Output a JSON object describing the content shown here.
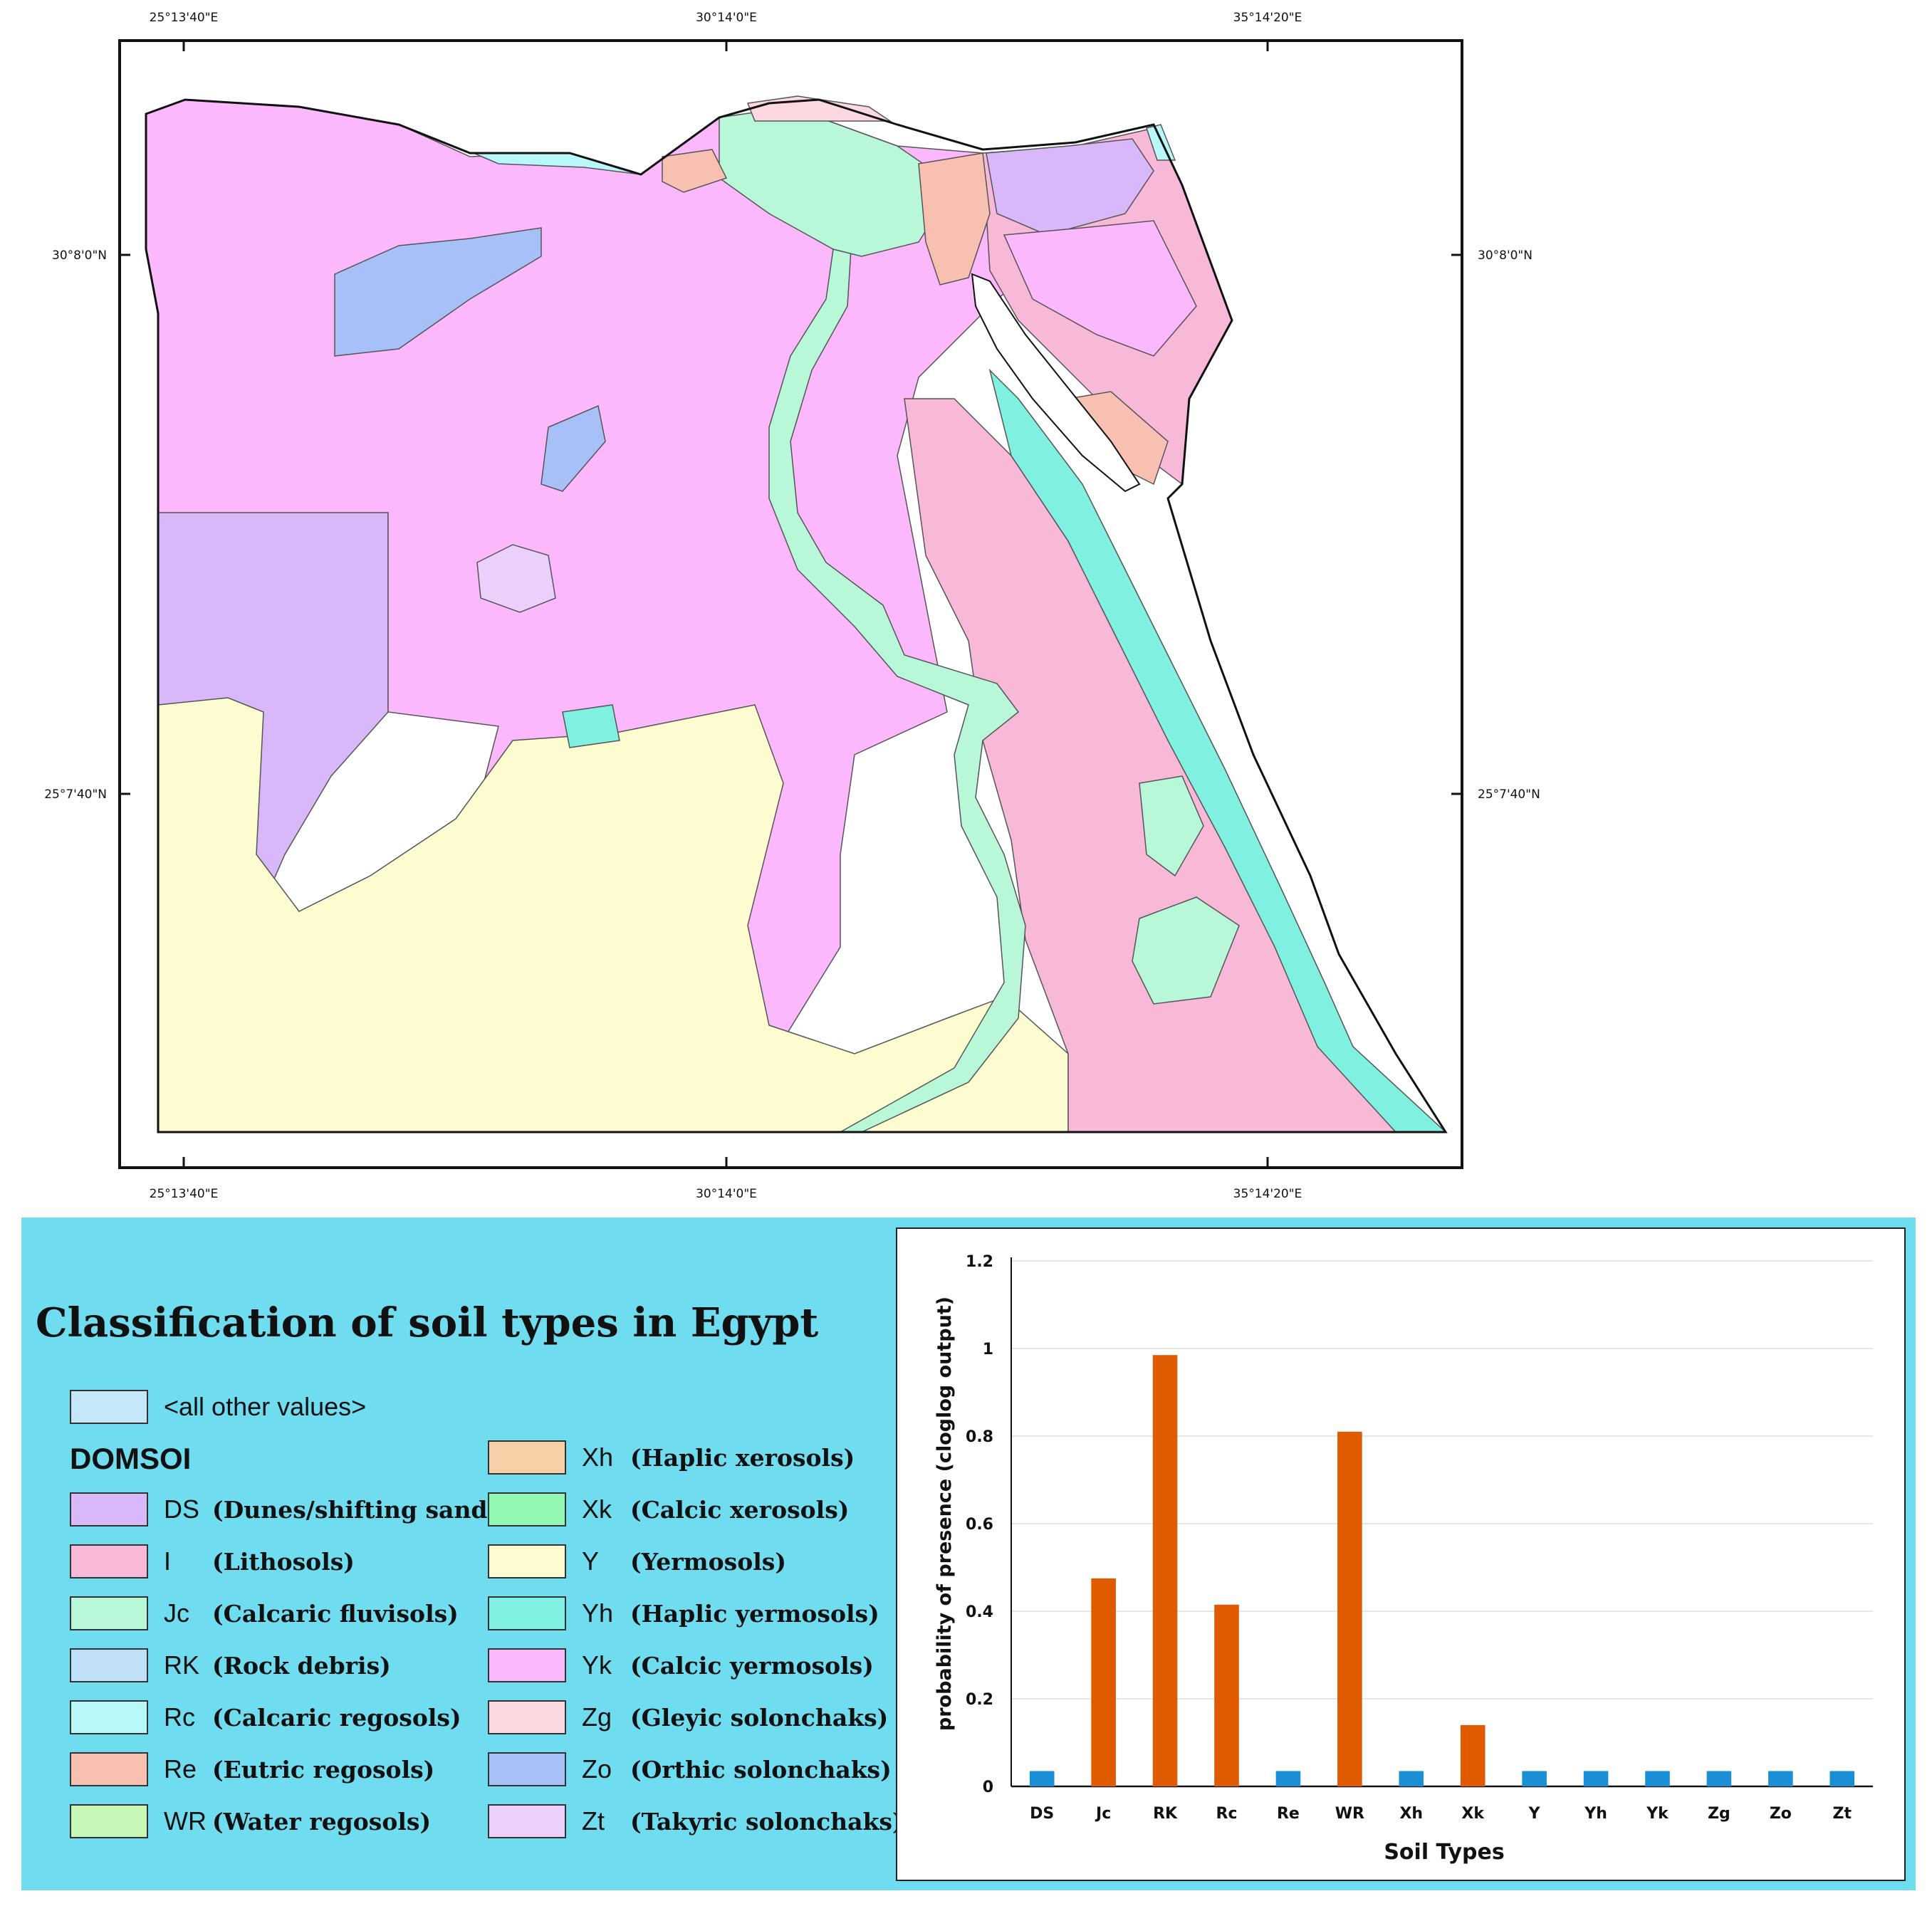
{
  "map": {
    "top_lon_labels": [
      "25°13'40\"E",
      "30°14'0\"E",
      "35°14'20\"E"
    ],
    "bottom_lon_labels": [
      "25°13'40\"E",
      "30°14'0\"E",
      "35°14'20\"E"
    ],
    "left_lat_labels": [
      "30°8'0\"N",
      "25°7'40\"N"
    ],
    "right_lat_labels": [
      "30°8'0\"N",
      "25°7'40\"N"
    ],
    "colors": {
      "DS": "#d8b8f8",
      "I": "#f8b8d8",
      "Jc": "#b8f8d8",
      "RK": "#c0e0f8",
      "Rc": "#b8f8f8",
      "Re": "#f8c0b0",
      "WR": "#c8f8b8",
      "Xh": "#f8d0a8",
      "Xk": "#90f8b0",
      "Y": "#fcfcd0",
      "Yh": "#80f0e0",
      "Yk": "#fcb8fc",
      "Zg": "#fcd8e0",
      "Zo": "#a8c0f8",
      "Zt": "#ecd0fc",
      "other": "#c4e8f8"
    }
  },
  "legend": {
    "title": "Classification of soil types in Egypt",
    "other_label": "<all other values>",
    "heading": "DOMSOI",
    "items": [
      {
        "code": "DS",
        "desc": "(Dunes/shifting sand)",
        "color": "#d8b8f8"
      },
      {
        "code": "I",
        "desc": "(Lithosols)",
        "color": "#f8b8d8"
      },
      {
        "code": "Jc",
        "desc": "(Calcaric fluvisols)",
        "color": "#b8f8d8"
      },
      {
        "code": "RK",
        "desc": "(Rock debris)",
        "color": "#c0e0f8"
      },
      {
        "code": "Rc",
        "desc": "(Calcaric regosols)",
        "color": "#b8f8f8"
      },
      {
        "code": "Re",
        "desc": "(Eutric regosols)",
        "color": "#f8c0b0"
      },
      {
        "code": "WR",
        "desc": "(Water regosols)",
        "color": "#c8f8b8"
      },
      {
        "code": "Xh",
        "desc": "(Haplic xerosols)",
        "color": "#f8d0a8"
      },
      {
        "code": "Xk",
        "desc": "(Calcic xerosols)",
        "color": "#90f8b0"
      },
      {
        "code": "Y",
        "desc": "(Yermosols)",
        "color": "#fcfcd0"
      },
      {
        "code": "Yh",
        "desc": "(Haplic yermosols)",
        "color": "#80f0e0"
      },
      {
        "code": "Yk",
        "desc": "(Calcic yermosols)",
        "color": "#fcb8fc"
      },
      {
        "code": "Zg",
        "desc": "(Gleyic solonchaks)",
        "color": "#fcd8e0"
      },
      {
        "code": "Zo",
        "desc": "(Orthic solonchaks)",
        "color": "#a8c0f8"
      },
      {
        "code": "Zt",
        "desc": "(Takyric solonchaks)",
        "color": "#ecd0fc"
      }
    ]
  },
  "chart_data": {
    "type": "bar",
    "categories": [
      "DS",
      "Jc",
      "RK",
      "Rc",
      "Re",
      "WR",
      "Xh",
      "Xk",
      "Y",
      "Yh",
      "Yk",
      "Zg",
      "Zo",
      "Zt"
    ],
    "values": [
      0.035,
      0.475,
      0.985,
      0.415,
      0.035,
      0.81,
      0.035,
      0.14,
      0.035,
      0.035,
      0.035,
      0.035,
      0.035,
      0.035
    ],
    "bar_colors": [
      "#1b8fd6",
      "#e05a00",
      "#e05a00",
      "#e05a00",
      "#1b8fd6",
      "#e05a00",
      "#1b8fd6",
      "#e05a00",
      "#1b8fd6",
      "#1b8fd6",
      "#1b8fd6",
      "#1b8fd6",
      "#1b8fd6",
      "#1b8fd6"
    ],
    "xlabel": "Soil Types",
    "ylabel": "probability of presence (cloglog output)",
    "ylim": [
      0,
      1.2
    ],
    "yticks": [
      "0",
      "0.2",
      "0.4",
      "0.6",
      "0.8",
      "1",
      "1.2"
    ],
    "grid": true
  }
}
